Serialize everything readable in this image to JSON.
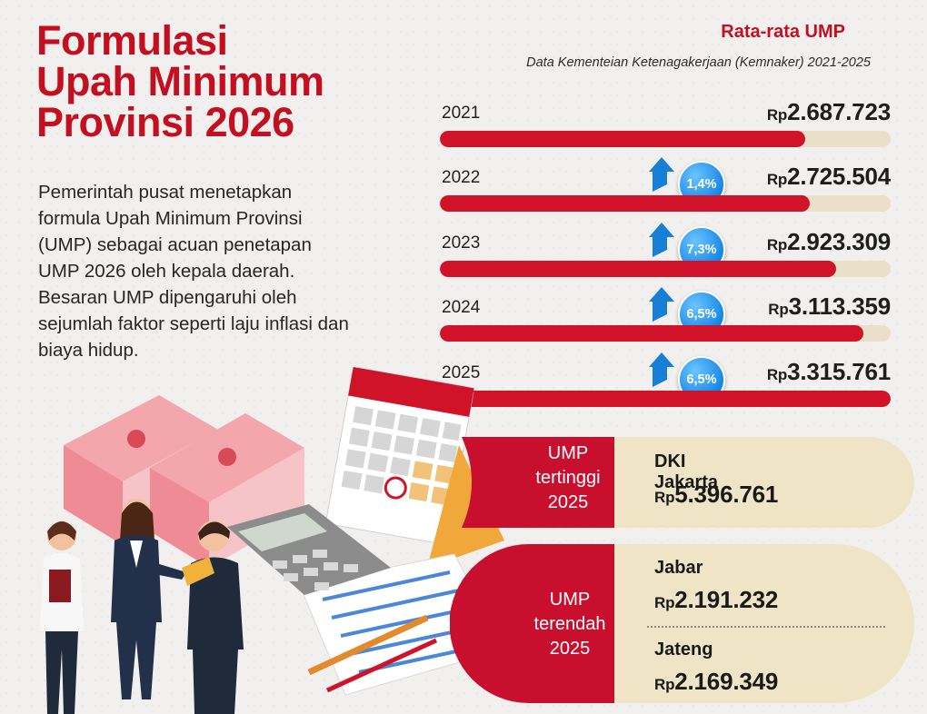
{
  "header": {
    "title_lines": [
      "Formulasi",
      "Upah Minimum",
      "Provinsi 2026"
    ],
    "intro": "Pemerintah pusat menetapkan formula Upah Minimum Provinsi (UMP) sebagai acuan penetapan UMP 2026 oleh kepala daerah. Besaran UMP dipengaruhi oleh sejumlah faktor seperti laju inflasi dan biaya hidup."
  },
  "chart_data": {
    "type": "bar",
    "title": "Rata-rata UMP",
    "subtitle": "Data Kementeian Ketenagakerjaan (Kemnaker) 2021-2025",
    "categories": [
      "2021",
      "2022",
      "2023",
      "2024",
      "2025"
    ],
    "values": [
      2687723,
      2725504,
      2923309,
      3113359,
      3315761
    ],
    "value_labels": [
      "2.687.723",
      "2.725.504",
      "2.923.309",
      "3.113.359",
      "3.315.761"
    ],
    "currency_prefix": "Rp",
    "growth": [
      "",
      "1,4%",
      "7,3%",
      "6,5%",
      "6,5%"
    ],
    "fill_fraction": [
      0.81,
      0.82,
      0.88,
      0.94,
      1.0
    ],
    "colors": {
      "bar": "#d1132a",
      "track": "#eadfc8",
      "badge": "#1787e6",
      "arrow": "#1780d6"
    }
  },
  "cards": {
    "highest": {
      "label_lines": [
        "UMP",
        "tertinggi",
        "2025"
      ],
      "province": "DKI Jakarta",
      "prefix": "Rp",
      "amount": "5.396.761"
    },
    "lowest": {
      "label_lines": [
        "UMP",
        "terendah",
        "2025"
      ],
      "entries": [
        {
          "province": "Jabar",
          "prefix": "Rp",
          "amount": "2.191.232"
        },
        {
          "province": "Jateng",
          "prefix": "Rp",
          "amount": "2.169.349"
        }
      ]
    }
  },
  "colors": {
    "brand_red": "#c40f20",
    "card_red": "#c8102e",
    "card_beige": "#efe4c6"
  }
}
